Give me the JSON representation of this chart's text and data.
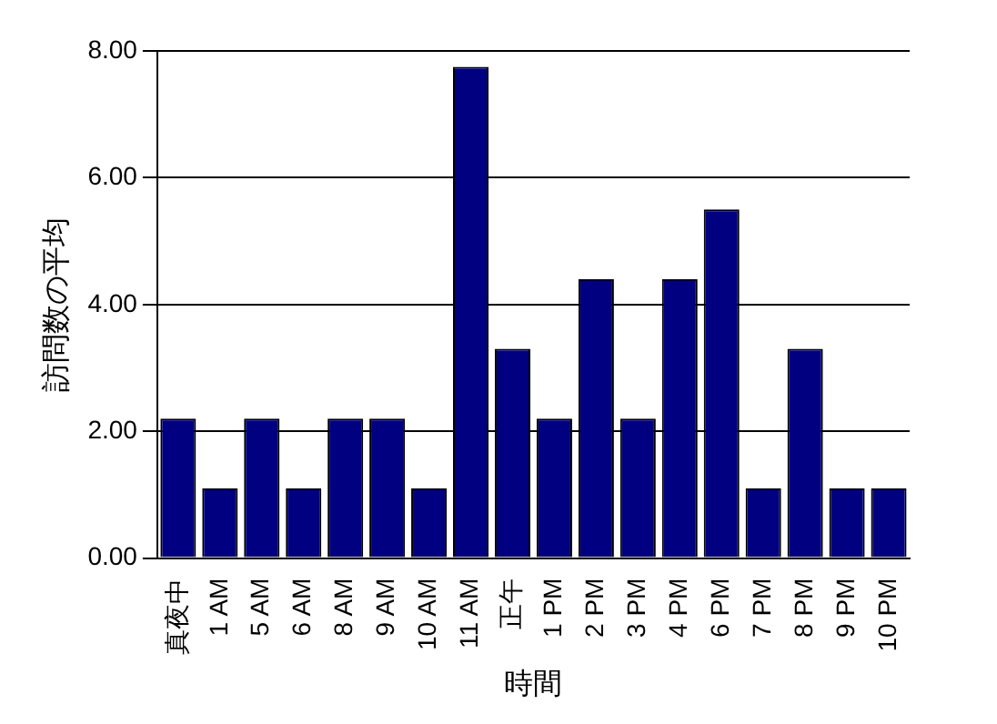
{
  "chart_data": {
    "type": "bar",
    "xlabel": "時間",
    "ylabel": "訪問数の平均",
    "categories": [
      "真夜中",
      "1 AM",
      "5 AM",
      "6 AM",
      "8 AM",
      "9 AM",
      "10 AM",
      "11 AM",
      "正午",
      "1 PM",
      "2 PM",
      "3 PM",
      "4 PM",
      "6 PM",
      "7 PM",
      "8 PM",
      "9 PM",
      "10 PM"
    ],
    "values": [
      2.2,
      1.1,
      2.2,
      1.1,
      2.2,
      2.2,
      1.1,
      7.75,
      3.3,
      2.2,
      4.4,
      2.2,
      4.4,
      5.5,
      1.1,
      3.3,
      1.1,
      1.1
    ],
    "color": "#000080",
    "ylim": [
      0,
      8
    ],
    "yticks": [
      {
        "value": 0,
        "label": "0.00"
      },
      {
        "value": 2,
        "label": "2.00"
      },
      {
        "value": 4,
        "label": "4.00"
      },
      {
        "value": 6,
        "label": "6.00"
      },
      {
        "value": 8,
        "label": "8.00"
      }
    ],
    "grid": "y"
  }
}
